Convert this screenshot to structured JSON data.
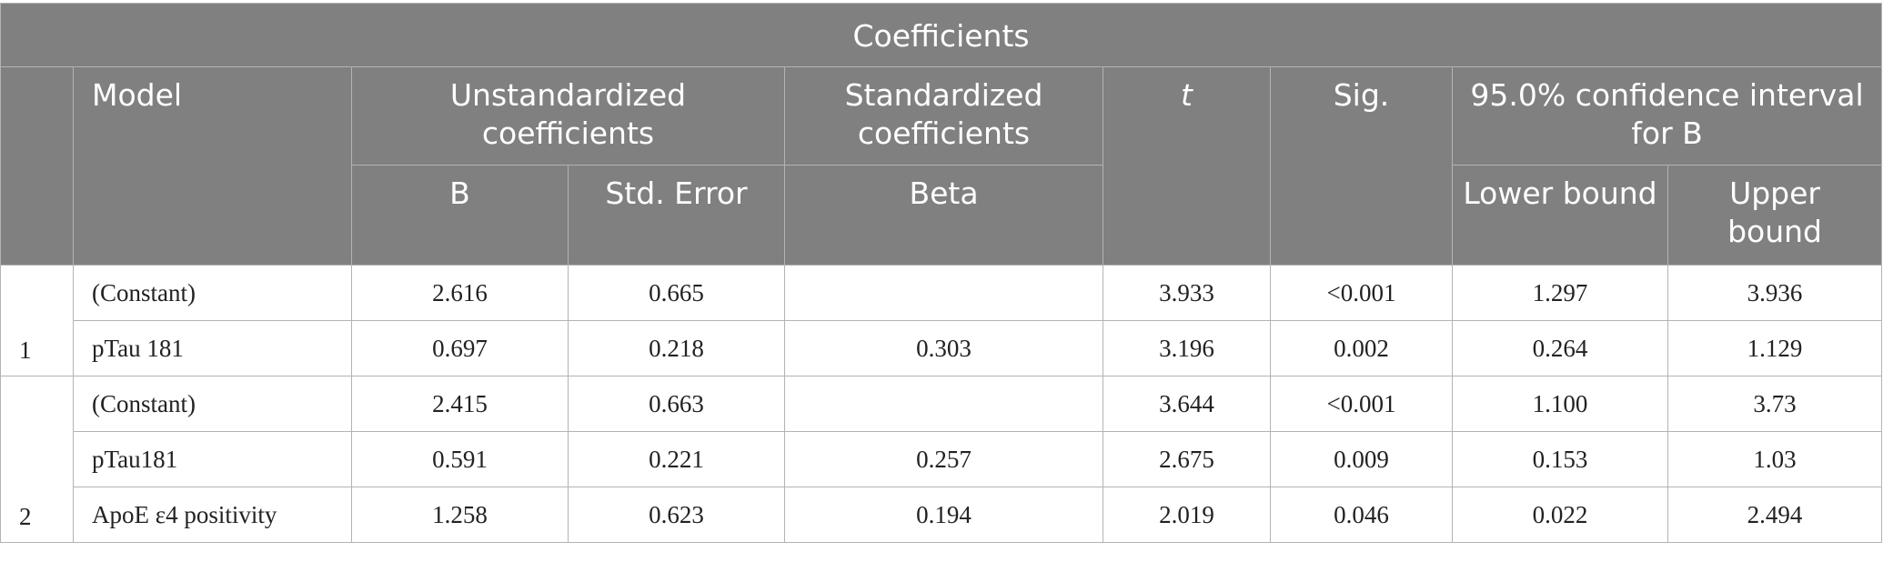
{
  "table": {
    "title": "Coefficients",
    "headers": {
      "model": "Model",
      "unstandardized": "Unstandardized coefficients",
      "standardized": "Standardized coefficients",
      "t": "t",
      "sig": "Sig.",
      "ci": "95.0% confidence interval for B",
      "b": "B",
      "std_error": "Std. Error",
      "beta": "Beta",
      "lower": "Lower bound",
      "upper": "Upper bound"
    },
    "models": [
      {
        "id": "1",
        "rows": [
          {
            "label": "(Constant)",
            "b": "2.616",
            "se": "0.665",
            "beta": "",
            "t": "3.933",
            "sig": "<0.001",
            "lower": "1.297",
            "upper": "3.936"
          },
          {
            "label": "pTau 181",
            "b": "0.697",
            "se": "0.218",
            "beta": "0.303",
            "t": "3.196",
            "sig": "0.002",
            "lower": "0.264",
            "upper": "1.129"
          }
        ]
      },
      {
        "id": "2",
        "rows": [
          {
            "label": "(Constant)",
            "b": "2.415",
            "se": "0.663",
            "beta": "",
            "t": "3.644",
            "sig": "<0.001",
            "lower": "1.100",
            "upper": "3.73"
          },
          {
            "label": "pTau181",
            "b": "0.591",
            "se": "0.221",
            "beta": "0.257",
            "t": "2.675",
            "sig": "0.009",
            "lower": "0.153",
            "upper": "1.03"
          },
          {
            "label": "ApoE ε4 positivity",
            "b": "1.258",
            "se": "0.623",
            "beta": "0.194",
            "t": "2.019",
            "sig": "0.046",
            "lower": "0.022",
            "upper": "2.494"
          }
        ]
      }
    ]
  }
}
